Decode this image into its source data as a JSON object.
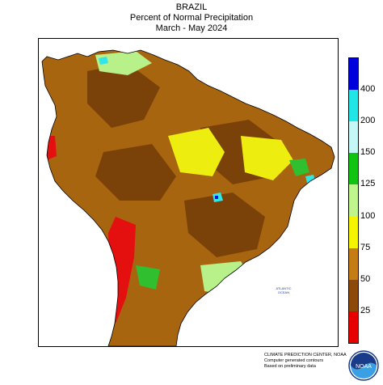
{
  "header": {
    "region": "BRAZIL",
    "product": "Percent of Normal Precipitation",
    "period": "March - May 2024"
  },
  "legend": {
    "colors": [
      "#e60000",
      "#8c4a0a",
      "#c47d14",
      "#f5f500",
      "#bff58c",
      "#11c411",
      "#c6f7f7",
      "#22e6e6",
      "#0000dd"
    ],
    "labels": [
      "25",
      "50",
      "75",
      "100",
      "125",
      "150",
      "200",
      "400"
    ]
  },
  "map": {
    "ocean_label_1": "ATLANTIC",
    "ocean_label_2": "OCEAN",
    "palette": {
      "ocean": "#ffffff",
      "land_base": "#a8650f",
      "dark_brown": "#7a4208",
      "yellow": "#eded10",
      "light_green": "#b8f08a",
      "green": "#2fbf2f",
      "red": "#e41010",
      "cyan": "#30e6e6",
      "blue": "#1010d8"
    }
  },
  "credits": {
    "line1": "CLIMATE PREDICTION CENTER, NOAA",
    "line2": "Computer generated contours",
    "line3": "Based on preliminary data"
  },
  "logo": {
    "text": "NOAA"
  }
}
